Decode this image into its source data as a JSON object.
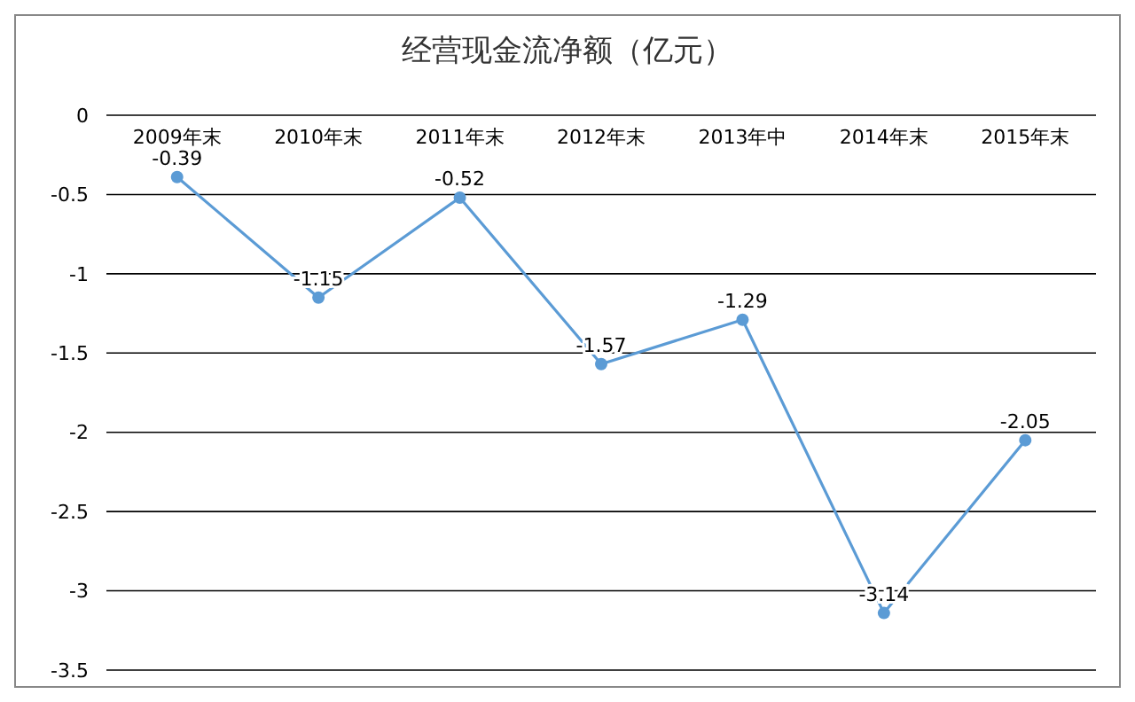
{
  "chart_data": {
    "type": "line",
    "title": "经营现金流净额（亿元）",
    "categories": [
      "2009年末",
      "2010年末",
      "2011年末",
      "2012年末",
      "2013年中",
      "2014年末",
      "2015年末"
    ],
    "series": [
      {
        "color": "#5b9bd5",
        "values": [
          -0.39,
          -1.15,
          -0.52,
          -1.57,
          -1.29,
          -3.14,
          -2.05
        ]
      }
    ],
    "ylim": [
      -3.5,
      0
    ],
    "yticks": [
      0,
      -0.5,
      -1,
      -1.5,
      -2,
      -2.5,
      -3,
      -3.5
    ],
    "grid": "y",
    "data_labels": true,
    "marker": "circle"
  }
}
